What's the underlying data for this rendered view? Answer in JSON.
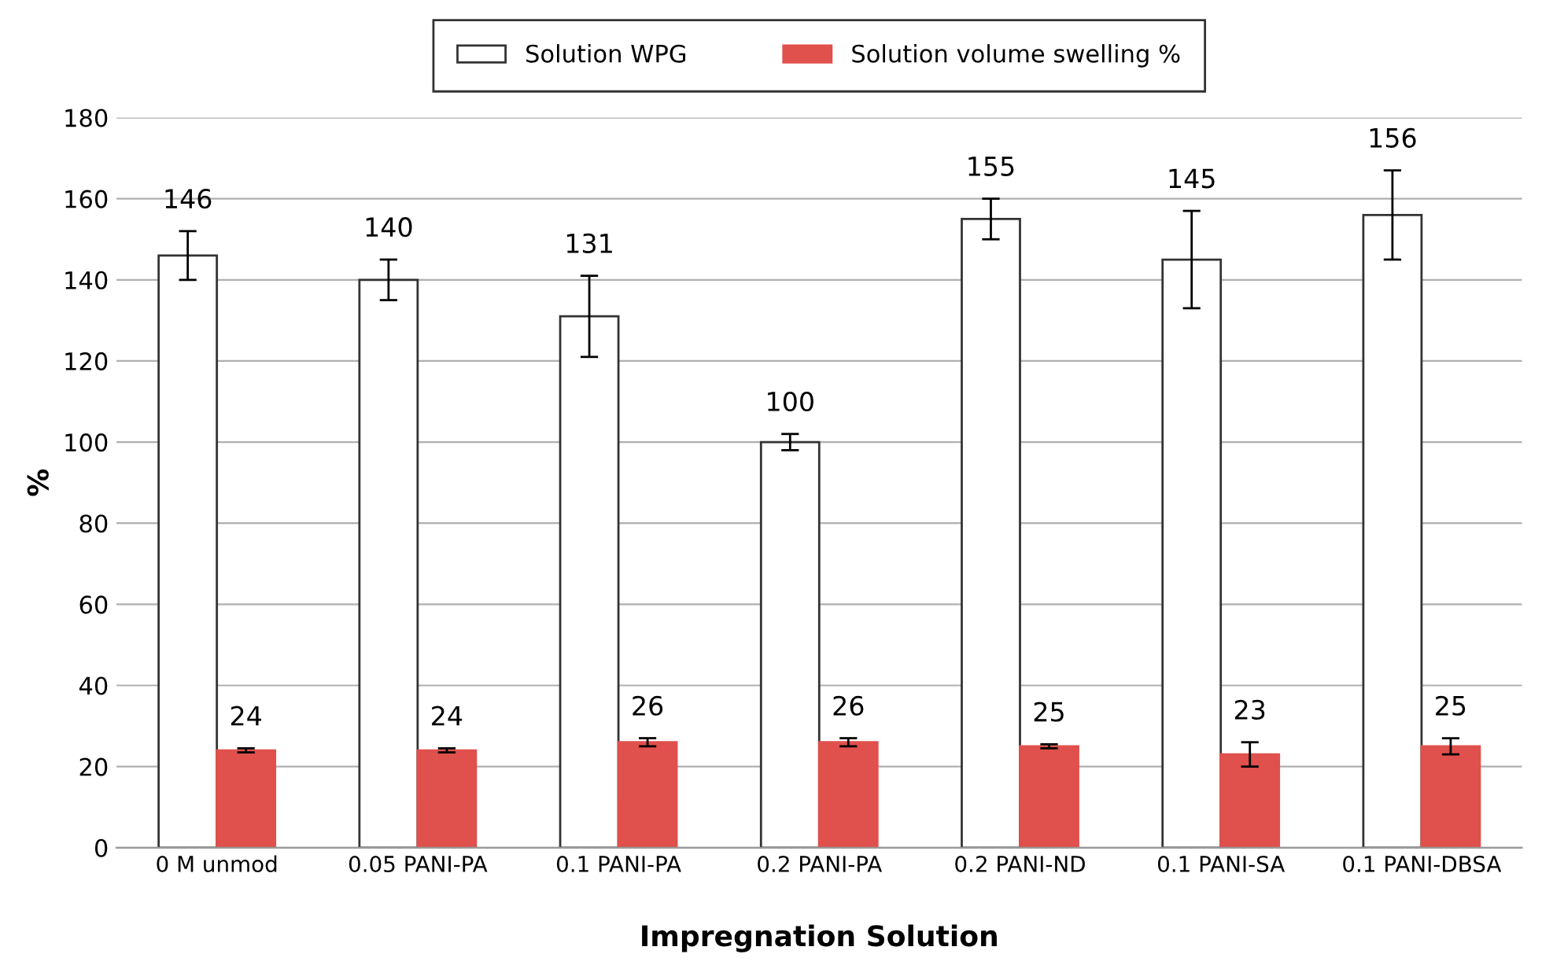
{
  "chart_data": {
    "type": "bar",
    "xlabel": "Impregnation Solution",
    "ylabel": "%",
    "categories": [
      "0 M unmod",
      "0.05 PANI-PA",
      "0.1 PANI-PA",
      "0.2 PANI-PA",
      "0.2 PANI-ND",
      "0.1 PANI-SA",
      "0.1 PANI-DBSA"
    ],
    "series": [
      {
        "name": "Solution WPG",
        "color": "#ffffff",
        "values": [
          146,
          140,
          131,
          100,
          155,
          145,
          156
        ],
        "errors": [
          6,
          5,
          10,
          2,
          5,
          12,
          11
        ]
      },
      {
        "name": "Solution volume swelling %",
        "color": "#e0504c",
        "values": [
          24,
          24,
          26,
          26,
          25,
          23,
          25
        ],
        "errors": [
          0.5,
          0.5,
          1,
          1,
          0.5,
          3,
          2
        ]
      }
    ],
    "ylim": [
      0,
      180
    ],
    "yticks": [
      0,
      20,
      40,
      60,
      80,
      100,
      120,
      140,
      160,
      180
    ],
    "grid": "y",
    "legend": "top",
    "data_labels": true
  }
}
